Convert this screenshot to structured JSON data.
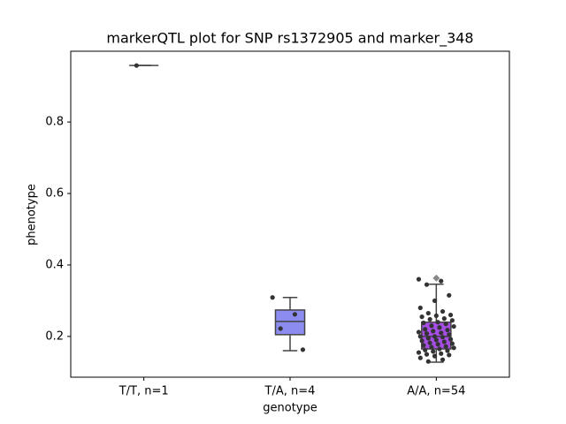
{
  "chart_data": {
    "type": "box",
    "title": "markerQTL plot for SNP rs1372905 and marker_348",
    "x_label": "genotype",
    "y_label": "phenotype",
    "categories": [
      "T/T, n=1",
      "T/A, n=4",
      "A/A, n=54"
    ],
    "colors": [
      "#6a6ae8",
      "#8c8cf0",
      "#a64ee6"
    ],
    "boxes": [
      {
        "min": 0.958,
        "q1": 0.958,
        "median": 0.958,
        "q3": 0.958,
        "max": 0.958,
        "outliers": []
      },
      {
        "min": 0.16,
        "q1": 0.205,
        "median": 0.242,
        "q3": 0.274,
        "max": 0.309,
        "outliers": []
      },
      {
        "min": 0.128,
        "q1": 0.165,
        "median": 0.2,
        "q3": 0.24,
        "max": 0.346,
        "outliers": [
          0.363
        ]
      }
    ],
    "points": [
      [
        0.958
      ],
      [
        0.309,
        0.262,
        0.222,
        0.163
      ],
      [
        0.36,
        0.355,
        0.345,
        0.315,
        0.3,
        0.28,
        0.27,
        0.265,
        0.26,
        0.258,
        0.255,
        0.25,
        0.248,
        0.245,
        0.24,
        0.238,
        0.235,
        0.23,
        0.228,
        0.225,
        0.22,
        0.218,
        0.215,
        0.212,
        0.21,
        0.208,
        0.205,
        0.2,
        0.2,
        0.198,
        0.195,
        0.192,
        0.19,
        0.188,
        0.185,
        0.182,
        0.18,
        0.178,
        0.175,
        0.172,
        0.17,
        0.168,
        0.165,
        0.162,
        0.16,
        0.158,
        0.155,
        0.152,
        0.15,
        0.148,
        0.145,
        0.14,
        0.135,
        0.13
      ]
    ],
    "ylim": [
      0.086,
      0.998
    ],
    "yticks": [
      0.2,
      0.4,
      0.6,
      0.8
    ]
  }
}
